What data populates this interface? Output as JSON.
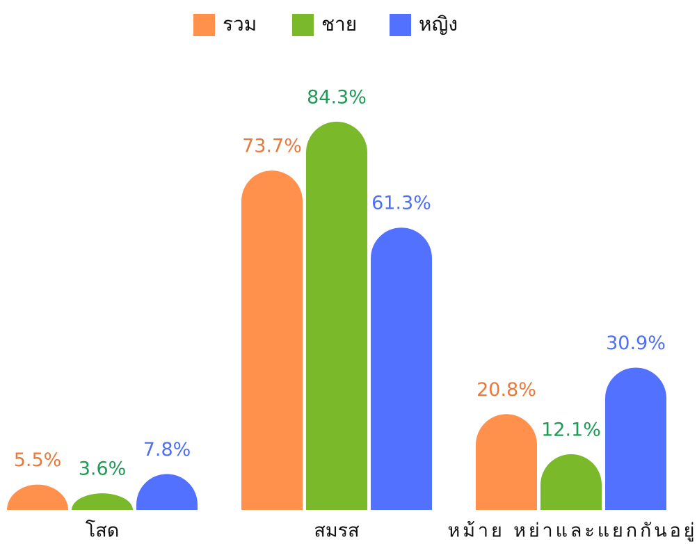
{
  "chart_data": {
    "type": "bar",
    "categories": [
      "โสด",
      "สมรส",
      "หม้าย หย่าและแยกกันอยู่"
    ],
    "series": [
      {
        "name": "รวม",
        "color": "#ff914d",
        "label_color": "#e8793a",
        "values": [
          5.5,
          73.7,
          20.8
        ],
        "value_labels": [
          "5.5%",
          "73.7%",
          "20.8%"
        ]
      },
      {
        "name": "ชาย",
        "color": "#7ab929",
        "label_color": "#1e9a55",
        "values": [
          3.6,
          84.3,
          12.1
        ],
        "value_labels": [
          "3.6%",
          "84.3%",
          "12.1%"
        ]
      },
      {
        "name": "หญิง",
        "color": "#5271ff",
        "label_color": "#4e6ff5",
        "values": [
          7.8,
          61.3,
          30.9
        ],
        "value_labels": [
          "7.8%",
          "61.3%",
          "30.9%"
        ]
      }
    ],
    "legend": "top"
  }
}
